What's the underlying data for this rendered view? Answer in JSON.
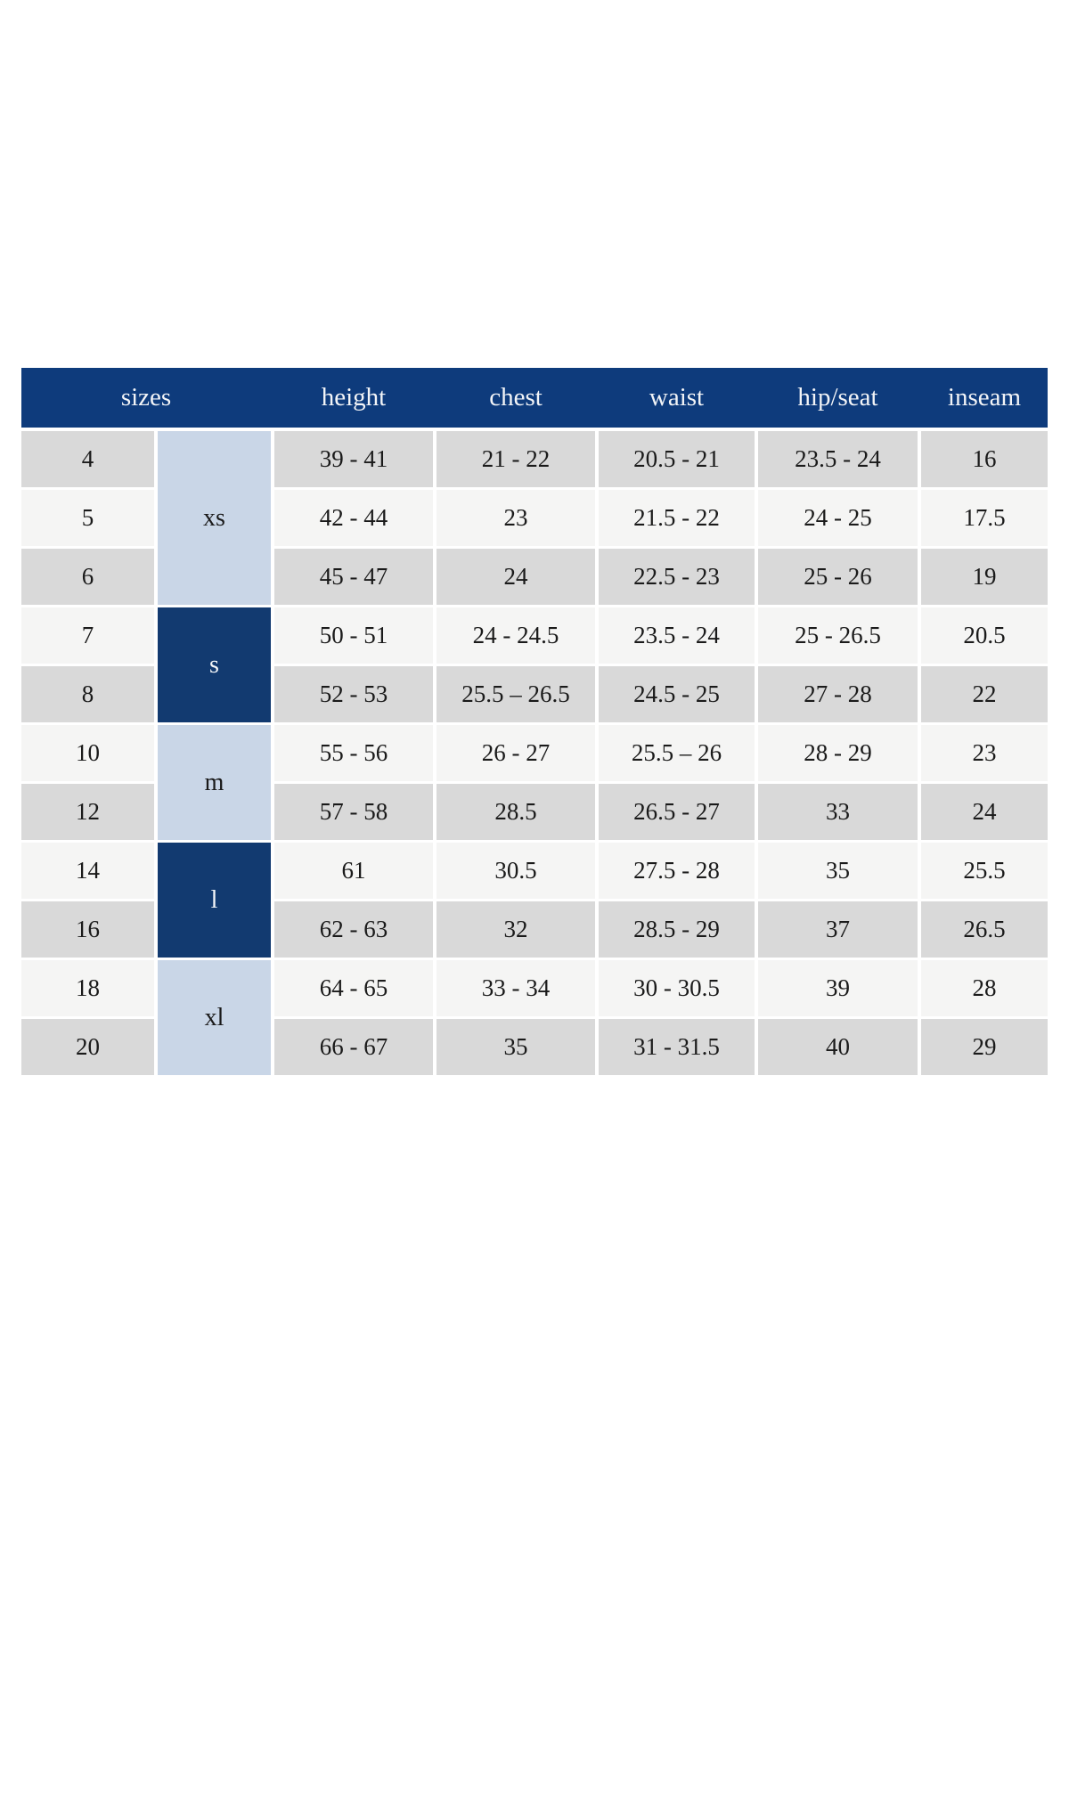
{
  "table": {
    "header": {
      "sizes": "sizes",
      "columns": [
        "height",
        "chest",
        "waist",
        "hip/seat",
        "inseam"
      ]
    },
    "groups": [
      {
        "label": "xs",
        "row_span": 3,
        "style": "light"
      },
      {
        "label": "s",
        "row_span": 2,
        "style": "dark"
      },
      {
        "label": "m",
        "row_span": 2,
        "style": "light"
      },
      {
        "label": "l",
        "row_span": 2,
        "style": "dark"
      },
      {
        "label": "xl",
        "row_span": 2,
        "style": "light"
      }
    ],
    "rows": [
      {
        "size": "4",
        "height": "39 - 41",
        "chest": "21 - 22",
        "waist": "20.5 - 21",
        "hip_seat": "23.5 - 24",
        "inseam": "16"
      },
      {
        "size": "5",
        "height": "42 - 44",
        "chest": "23",
        "waist": "21.5 - 22",
        "hip_seat": "24 - 25",
        "inseam": "17.5"
      },
      {
        "size": "6",
        "height": "45 - 47",
        "chest": "24",
        "waist": "22.5 - 23",
        "hip_seat": "25 - 26",
        "inseam": "19"
      },
      {
        "size": "7",
        "height": "50 - 51",
        "chest": "24 - 24.5",
        "waist": "23.5 - 24",
        "hip_seat": "25 - 26.5",
        "inseam": "20.5"
      },
      {
        "size": "8",
        "height": "52 - 53",
        "chest": "25.5 – 26.5",
        "waist": "24.5 - 25",
        "hip_seat": "27 - 28",
        "inseam": "22"
      },
      {
        "size": "10",
        "height": "55 - 56",
        "chest": "26 - 27",
        "waist": "25.5 – 26",
        "hip_seat": "28 - 29",
        "inseam": "23"
      },
      {
        "size": "12",
        "height": "57 - 58",
        "chest": "28.5",
        "waist": "26.5 - 27",
        "hip_seat": "33",
        "inseam": "24"
      },
      {
        "size": "14",
        "height": "61",
        "chest": "30.5",
        "waist": "27.5 - 28",
        "hip_seat": "35",
        "inseam": "25.5"
      },
      {
        "size": "16",
        "height": "62 - 63",
        "chest": "32",
        "waist": "28.5 - 29",
        "hip_seat": "37",
        "inseam": "26.5"
      },
      {
        "size": "18",
        "height": "64 - 65",
        "chest": "33 - 34",
        "waist": "30 - 30.5",
        "hip_seat": "39",
        "inseam": "28"
      },
      {
        "size": "20",
        "height": "66 - 67",
        "chest": "35",
        "waist": "31 - 31.5",
        "hip_seat": "40",
        "inseam": "29"
      }
    ],
    "colors": {
      "header_navy": "#0e3b7c",
      "group_navy": "#123a70",
      "group_light_blue": "#c9d6e7",
      "row_gray": "#d9d9d9",
      "row_light": "#f5f5f4",
      "header_text": "#f2f4f7",
      "body_text": "#1a1a1a",
      "background": "#ffffff"
    }
  }
}
